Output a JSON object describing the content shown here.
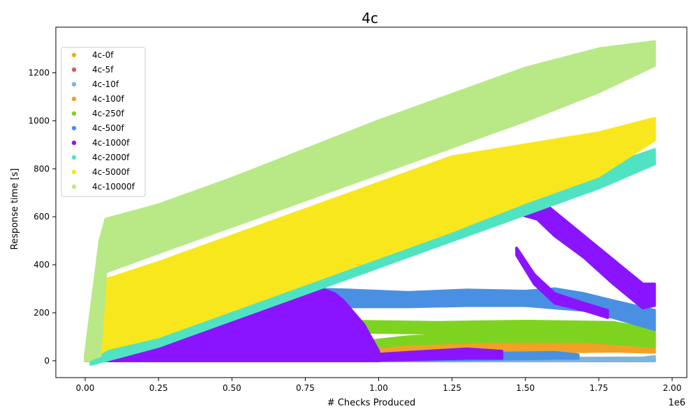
{
  "chart_data": {
    "type": "scatter",
    "title": "4c",
    "xlabel": "# Checks Produced",
    "ylabel": "Response time [s]",
    "x_offset_label": "1e6",
    "xlim": [
      -0.1,
      2.05
    ],
    "ylim": [
      -70,
      1390
    ],
    "x_ticks": [
      0,
      0.25,
      0.5,
      0.75,
      1.0,
      1.25,
      1.5,
      1.75,
      2.0
    ],
    "x_tick_labels": [
      "0.00",
      "0.25",
      "0.50",
      "0.75",
      "1.00",
      "1.25",
      "1.50",
      "1.75",
      "2.00"
    ],
    "y_ticks": [
      0,
      200,
      400,
      600,
      800,
      1000,
      1200
    ],
    "y_tick_labels": [
      "0",
      "200",
      "400",
      "600",
      "800",
      "1000",
      "1200"
    ],
    "legend_position": "upper-left",
    "grid": false,
    "series": [
      {
        "name": "4c-0f",
        "color": "#e8b21a",
        "bands": [
          {
            "x": [
              0,
              0.5,
              1.0,
              1.5,
              1.94
            ],
            "low": [
              0,
              0,
              0,
              0,
              0
            ],
            "high": [
              5,
              6,
              5,
              6,
              5
            ]
          }
        ]
      },
      {
        "name": "4c-5f",
        "color": "#d65a5a",
        "bands": [
          {
            "x": [
              0,
              0.5,
              1.0,
              1.5,
              1.94
            ],
            "low": [
              0,
              0,
              0,
              0,
              0
            ],
            "high": [
              4,
              5,
              4,
              5,
              4
            ]
          }
        ]
      },
      {
        "name": "4c-10f",
        "color": "#7eb5da",
        "bands": [
          {
            "x": [
              0,
              0.5,
              1.0,
              1.5,
              1.9,
              1.94
            ],
            "low": [
              0,
              0,
              0,
              0,
              0,
              0
            ],
            "high": [
              8,
              10,
              8,
              10,
              12,
              18
            ]
          }
        ]
      },
      {
        "name": "4c-100f",
        "color": "#f2a127",
        "bands": [
          {
            "x": [
              0.02,
              0.3,
              0.6,
              0.9,
              1.2,
              1.5,
              1.8,
              1.94
            ],
            "low": [
              0,
              0,
              5,
              15,
              30,
              35,
              40,
              35
            ],
            "high": [
              10,
              15,
              35,
              70,
              80,
              80,
              75,
              60
            ]
          }
        ]
      },
      {
        "name": "4c-250f",
        "color": "#7ed321",
        "bands": [
          {
            "x": [
              0.02,
              0.3,
              0.6,
              0.9,
              1.2,
              1.5,
              1.8,
              1.94
            ],
            "low": [
              0,
              0,
              10,
              120,
              115,
              115,
              110,
              90
            ],
            "high": [
              10,
              20,
              40,
              165,
              160,
              165,
              160,
              130
            ]
          },
          {
            "x": [
              0.5,
              0.8,
              1.1,
              1.4,
              1.7,
              1.94
            ],
            "low": [
              5,
              30,
              70,
              80,
              80,
              60
            ],
            "high": [
              20,
              60,
              100,
              120,
              120,
              100
            ]
          }
        ]
      },
      {
        "name": "4c-500f",
        "color": "#4a90e2",
        "bands": [
          {
            "x": [
              0.75,
              0.9,
              1.1,
              1.3,
              1.5,
              1.6,
              1.7,
              1.8,
              1.94
            ],
            "low": [
              240,
              225,
              225,
              230,
              230,
              220,
              210,
              180,
              130
            ],
            "high": [
              300,
              295,
              285,
              295,
              290,
              300,
              280,
              250,
              210
            ]
          },
          {
            "x": [
              0.02,
              0.5,
              1.0,
              1.3,
              1.6,
              1.68
            ],
            "low": [
              0,
              0,
              0,
              5,
              10,
              10
            ],
            "high": [
              15,
              20,
              25,
              30,
              35,
              25
            ]
          }
        ]
      },
      {
        "name": "4c-1000f",
        "color": "#8a14ff",
        "bands": [
          {
            "x": [
              0.08,
              0.35,
              0.6,
              0.78,
              0.85,
              0.88,
              0.95,
              1.0
            ],
            "low": [
              0,
              0,
              0,
              0,
              0,
              0,
              0,
              0
            ],
            "high": [
              25,
              110,
              230,
              310,
              280,
              250,
              150,
              40
            ]
          },
          {
            "x": [
              1.33,
              1.45,
              1.54,
              1.6,
              1.7,
              1.8,
              1.9,
              1.94
            ],
            "low": [
              585,
              620,
              590,
              520,
              430,
              320,
              220,
              230
            ],
            "high": [
              600,
              650,
              680,
              620,
              520,
              420,
              320,
              320
            ]
          },
          {
            "x": [
              1.47,
              1.53,
              1.6,
              1.7,
              1.78
            ],
            "low": [
              440,
              320,
              240,
              210,
              180
            ],
            "high": [
              470,
              360,
              280,
              240,
              210
            ]
          },
          {
            "x": [
              0.9,
              1.1,
              1.3,
              1.42
            ],
            "low": [
              0,
              5,
              10,
              10
            ],
            "high": [
              20,
              35,
              50,
              40
            ]
          }
        ]
      },
      {
        "name": "4c-2000f",
        "color": "#50e3c2",
        "bands": [
          {
            "x": [
              0.02,
              0.25,
              0.5,
              0.75,
              1.0,
              1.25,
              1.5,
              1.75,
              1.94
            ],
            "low": [
              -15,
              60,
              170,
              280,
              390,
              500,
              610,
              720,
              820
            ],
            "high": [
              15,
              140,
              245,
              355,
              465,
              575,
              690,
              800,
              880
            ]
          }
        ]
      },
      {
        "name": "4c-5000f",
        "color": "#f8e71c",
        "bands": [
          {
            "x": [
              0.01,
              0.05,
              0.075,
              0.25,
              0.5,
              0.75,
              1.0,
              1.25,
              1.5,
              1.75,
              1.94
            ],
            "low": [
              0,
              30,
              50,
              100,
              210,
              320,
              430,
              540,
              660,
              770,
              920
            ],
            "high": [
              20,
              300,
              340,
              410,
              520,
              630,
              740,
              850,
              900,
              950,
              1010
            ]
          }
        ]
      },
      {
        "name": "4c-10000f",
        "color": "#b8e986",
        "bands": [
          {
            "x": [
              0,
              0.05,
              0.07,
              0.25,
              0.5,
              0.75,
              1.0,
              1.25,
              1.5,
              1.75,
              1.94
            ],
            "low": [
              0,
              20,
              370,
              450,
              560,
              670,
              780,
              890,
              1000,
              1120,
              1230
            ],
            "high": [
              20,
              500,
              590,
              650,
              760,
              880,
              1000,
              1110,
              1220,
              1300,
              1330
            ]
          }
        ]
      }
    ]
  }
}
